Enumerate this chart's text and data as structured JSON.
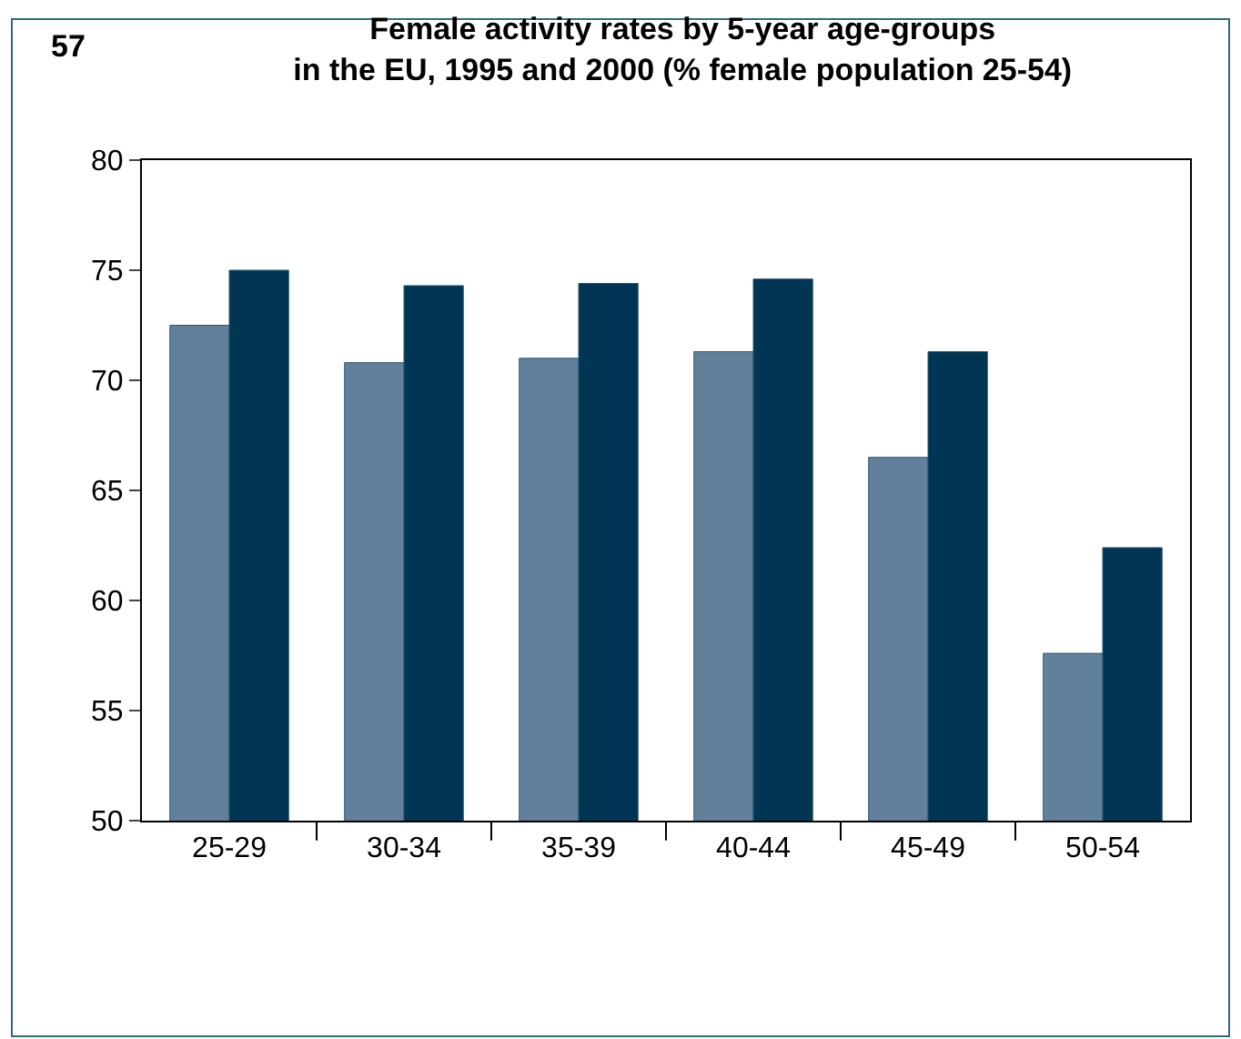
{
  "chart_data": {
    "type": "bar",
    "title": "Female activity rates by 5-year age-groups\nin the EU, 1995 and 2000 (% female population 25-54)",
    "annotations": [
      "57"
    ],
    "categories": [
      "25-29",
      "30-34",
      "35-39",
      "40-44",
      "45-49",
      "50-54"
    ],
    "series": [
      {
        "color": "#62809c",
        "values": [
          72.5,
          70.8,
          71.0,
          71.3,
          66.5,
          57.6
        ]
      },
      {
        "color": "#003654",
        "values": [
          75.0,
          74.3,
          74.4,
          74.6,
          71.3,
          62.4
        ]
      }
    ],
    "ylim": [
      50,
      80
    ],
    "yticks": [
      50,
      55,
      60,
      65,
      70,
      75,
      80
    ],
    "grid": false
  }
}
